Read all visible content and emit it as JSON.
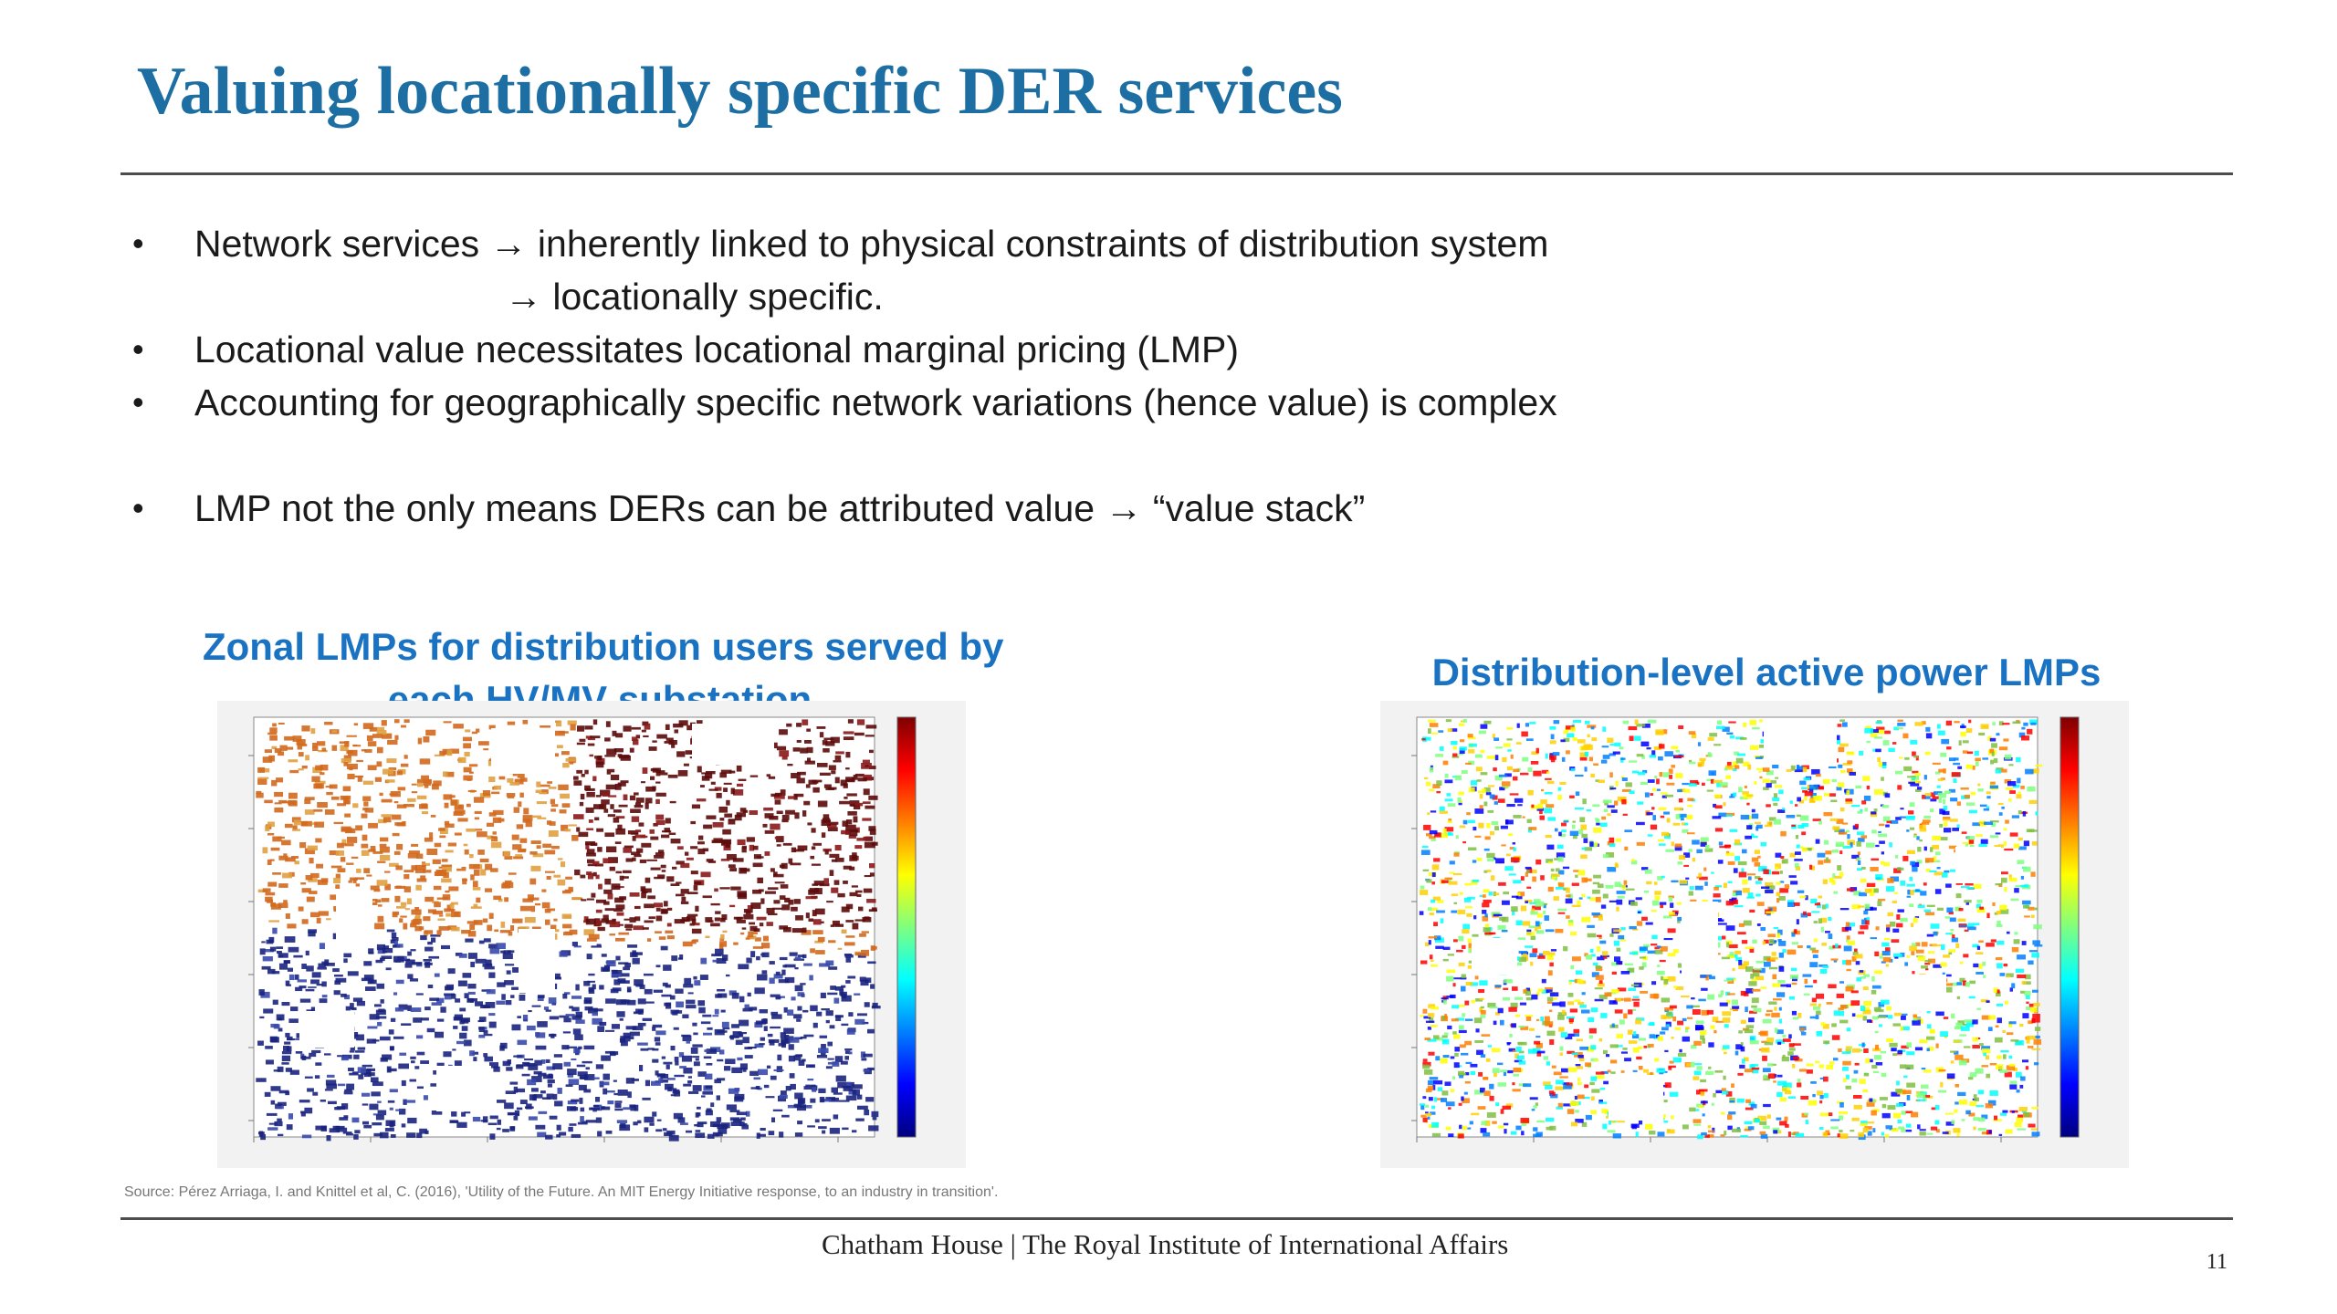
{
  "slide": {
    "title": "Valuing locationally specific DER services",
    "bullets": [
      {
        "dot": "•",
        "prefix": "Network services ",
        "arrow": "→",
        "suffix": " inherently linked to physical constraints of distribution system"
      },
      {
        "arrow": "→",
        "suffix": " locationally specific."
      },
      {
        "dot": "•",
        "text": "Locational value necessitates locational marginal pricing (LMP)"
      },
      {
        "dot": "•",
        "text": "Accounting for geographically specific network variations (hence value) is complex"
      },
      {
        "dot": "•",
        "prefix": "LMP not the only means DERs can be attributed value ",
        "arrow": "→",
        "suffix": " “value stack”"
      }
    ]
  },
  "figures": {
    "left": {
      "title_line1": "Zonal LMPs for distribution users served by",
      "title_line2": "each HV/MV substation"
    },
    "right": {
      "title": "Distribution-level active power LMPs"
    }
  },
  "source": "Source: Pérez Arriaga, I. and Knittel et al, C. (2016), 'Utility of the Future. An MIT Energy Initiative response, to an industry in transition'.",
  "footer": {
    "org": "Chatham House  |  The Royal Institute of International Affairs",
    "page_number": "11"
  },
  "colors": {
    "title": "#1d6fa3",
    "figure_title": "#1a73c2"
  }
}
